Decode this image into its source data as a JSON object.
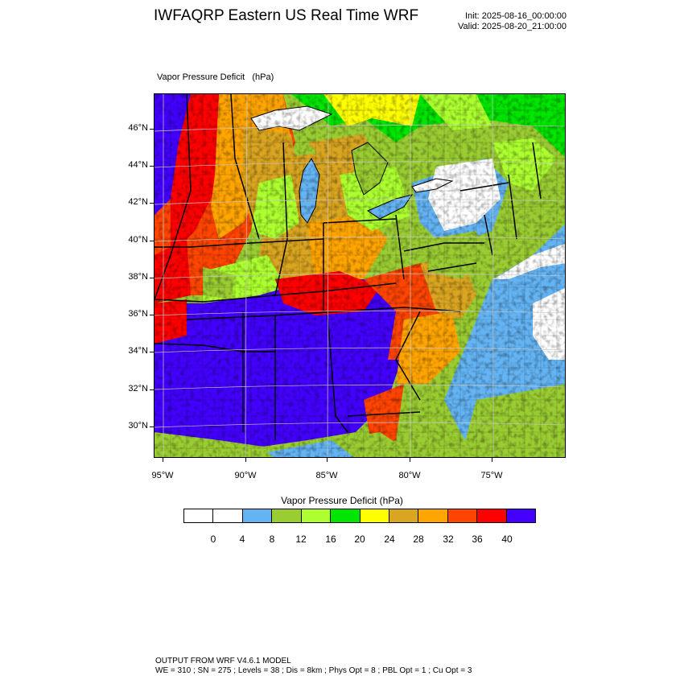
{
  "header": {
    "title": "IWFAQRP Eastern US Real Time WRF",
    "init": "Init: 2025-08-16_00:00:00",
    "valid": "Valid: 2025-08-20_21:00:00"
  },
  "field_label": "Vapor Pressure Deficit   (hPa)",
  "map": {
    "lat_labels": [
      "46°N",
      "44°N",
      "42°N",
      "40°N",
      "38°N",
      "36°N",
      "34°N",
      "32°N",
      "30°N"
    ],
    "lon_labels": [
      "95°W",
      "90°W",
      "85°W",
      "80°W",
      "75°W"
    ]
  },
  "colorbar": {
    "title": "Vapor Pressure Deficit   (hPa)",
    "tick_labels": [
      "0",
      "4",
      "8",
      "12",
      "16",
      "20",
      "24",
      "28",
      "32",
      "36",
      "40"
    ],
    "colors": [
      "#ffffff",
      "#ffffff",
      "#64b4f4",
      "#9acd32",
      "#adff2f",
      "#00e600",
      "#ffff00",
      "#daa520",
      "#ffa500",
      "#ff4500",
      "#ff0000",
      "#4400ff"
    ]
  },
  "footer": {
    "line1": "OUTPUT FROM WRF V4.6.1 MODEL",
    "line2": "WE = 310 ; SN = 275 ; Levels = 38 ; Dis = 8km ; Phys Opt = 8 ; PBL Opt = 1 ; Cu Opt = 3"
  }
}
